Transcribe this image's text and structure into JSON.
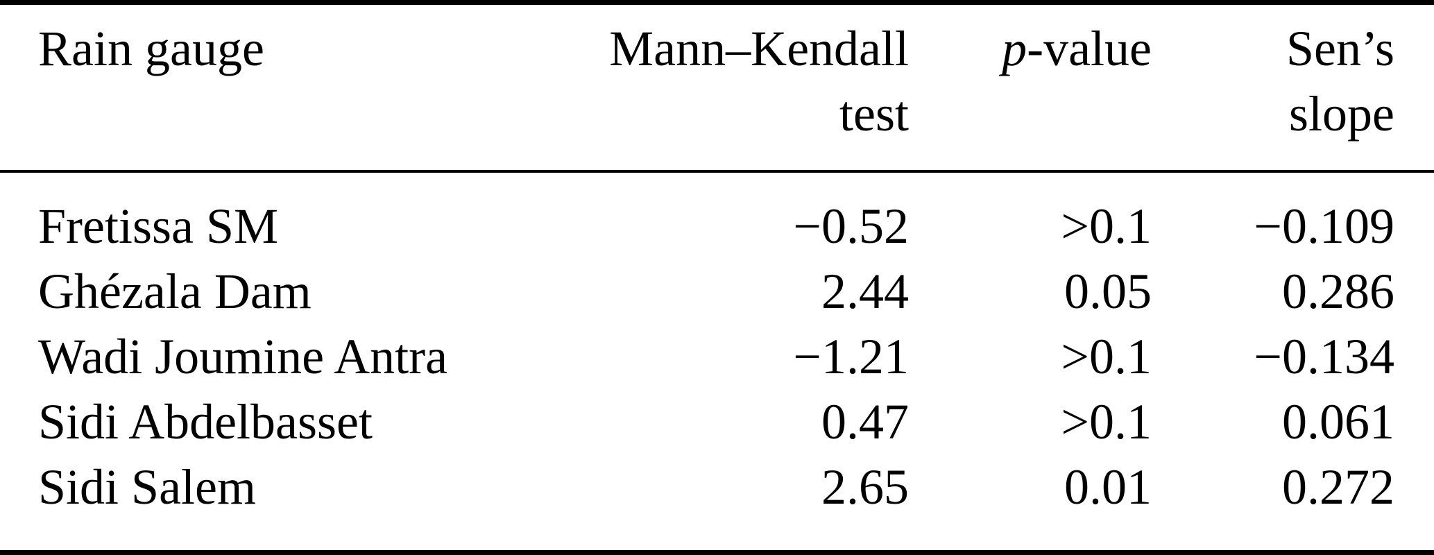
{
  "page": {
    "background": "#ffffff"
  },
  "table": {
    "colors": {
      "text": "#000000",
      "rule": "#000000",
      "background": "#ffffff"
    },
    "columns": {
      "rain_gauge": {
        "label": "Rain gauge"
      },
      "mann_kendall": {
        "line1": "Mann–Kendall",
        "line2": "test"
      },
      "p_value": {
        "italic": "p",
        "rest": "-value"
      },
      "sens_slope": {
        "line1": "Sen’s",
        "line2": "slope"
      }
    },
    "rows": [
      {
        "gauge": "Fretissa SM",
        "mann_kendall": "−0.52",
        "p_value": ">0.1",
        "sens_slope": "−0.109"
      },
      {
        "gauge": "Ghézala Dam",
        "mann_kendall": "2.44",
        "p_value": "0.05",
        "sens_slope": "0.286"
      },
      {
        "gauge": "Wadi Joumine Antra",
        "mann_kendall": "−1.21",
        "p_value": ">0.1",
        "sens_slope": "−0.134"
      },
      {
        "gauge": "Sidi Abdelbasset",
        "mann_kendall": "0.47",
        "p_value": ">0.1",
        "sens_slope": "0.061"
      },
      {
        "gauge": "Sidi Salem",
        "mann_kendall": "2.65",
        "p_value": "0.01",
        "sens_slope": "0.272"
      }
    ]
  }
}
